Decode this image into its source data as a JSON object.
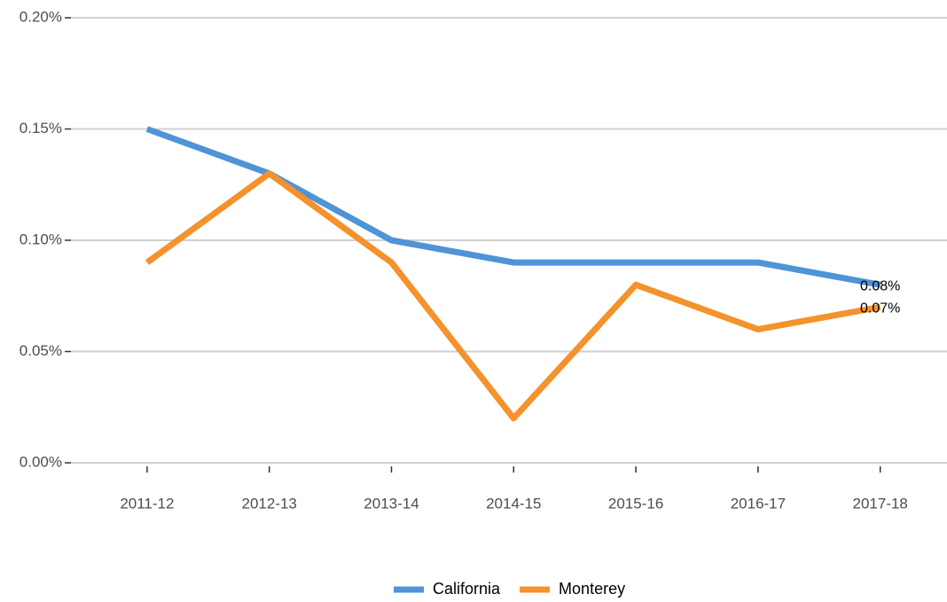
{
  "chart_data": {
    "type": "line",
    "categories": [
      "2011-12",
      "2012-13",
      "2013-14",
      "2014-15",
      "2015-16",
      "2016-17",
      "2017-18"
    ],
    "series": [
      {
        "name": "California",
        "color": "#4e94d6",
        "values": [
          0.15,
          0.13,
          0.1,
          0.09,
          0.09,
          0.09,
          0.08
        ],
        "value_labels": [
          null,
          null,
          null,
          null,
          null,
          null,
          "0.08%"
        ]
      },
      {
        "name": "Monterey",
        "color": "#f4922c",
        "values": [
          0.09,
          0.13,
          0.09,
          0.02,
          0.08,
          0.06,
          0.07
        ],
        "value_labels": [
          null,
          null,
          null,
          null,
          null,
          null,
          "0.07%"
        ]
      }
    ],
    "ylim": [
      0,
      0.2
    ],
    "yticks": [
      {
        "value": 0,
        "label": "0.00%"
      },
      {
        "value": 0.05,
        "label": "0.05%"
      },
      {
        "value": 0.1,
        "label": "0.10%"
      },
      {
        "value": 0.15,
        "label": "0.15%"
      },
      {
        "value": 0.2,
        "label": "0.20%"
      }
    ],
    "grid": true,
    "legend": "bottom"
  }
}
